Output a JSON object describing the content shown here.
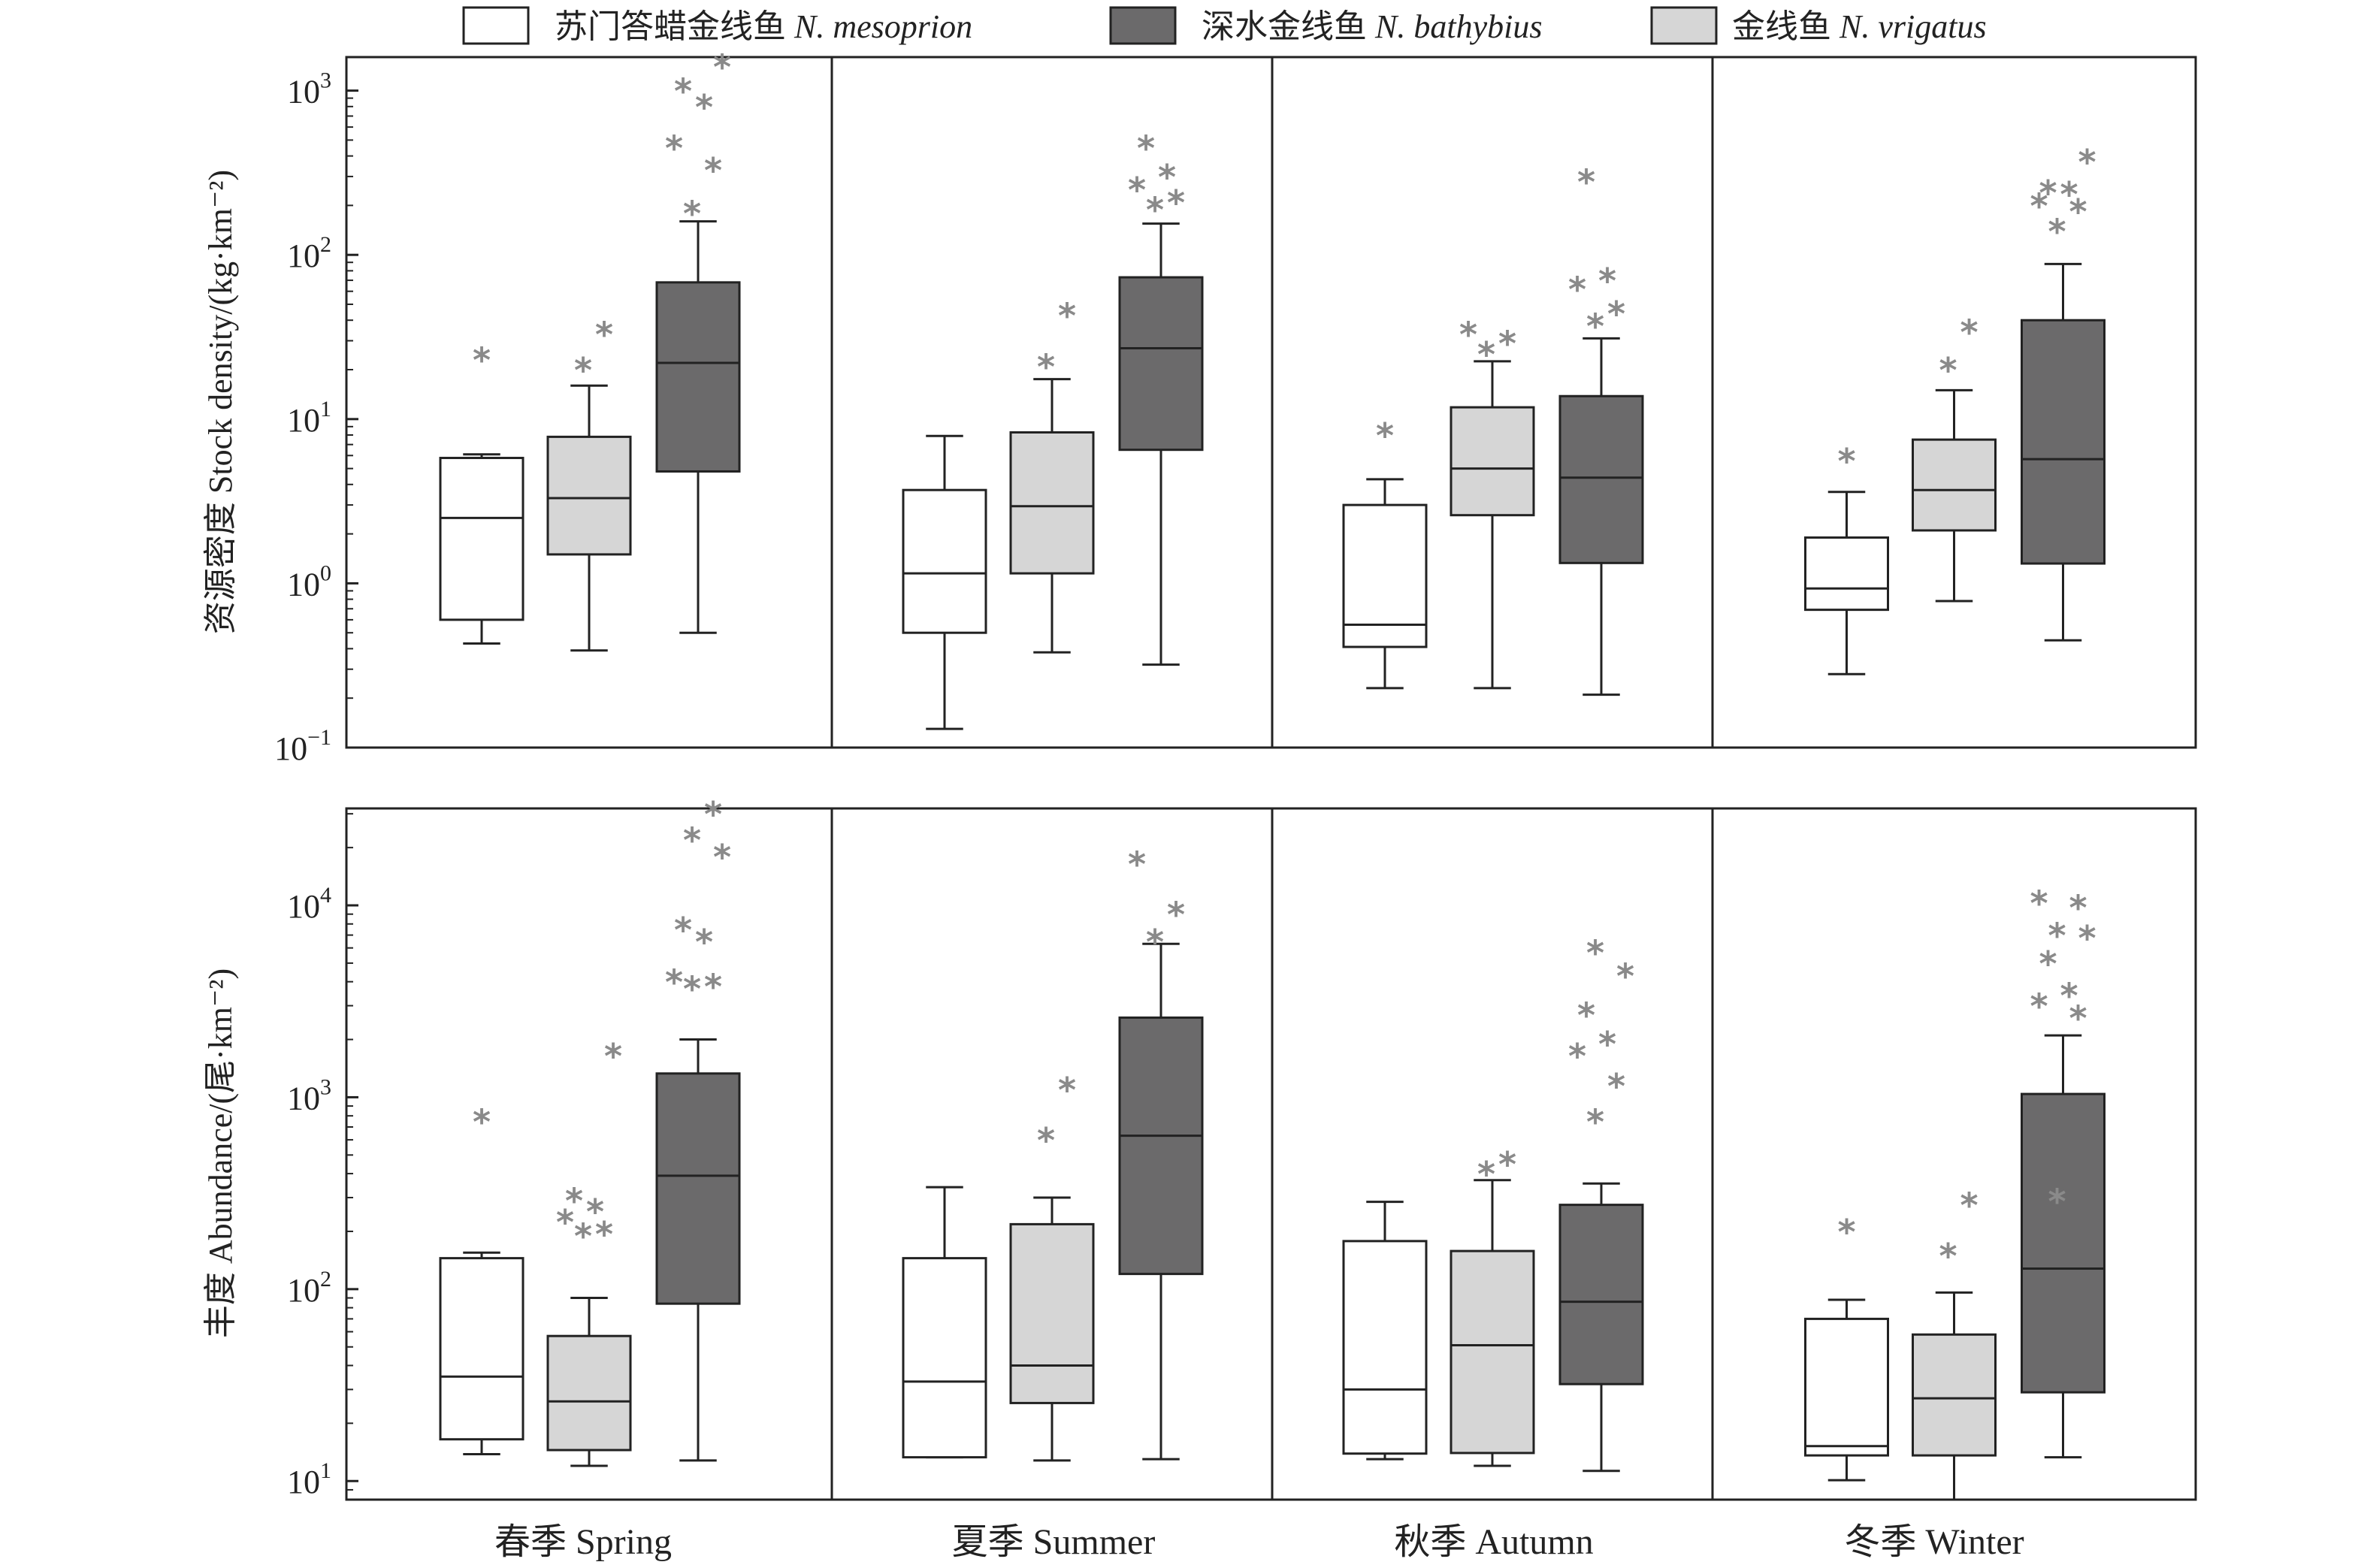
{
  "legend": {
    "items": [
      {
        "label_cn": "苏门答蜡金线鱼",
        "label_sci": "N. mesoprion",
        "color": "#ffffff"
      },
      {
        "label_cn": "深水金线鱼",
        "label_sci": "N. bathybius",
        "color": "#6b6a6b"
      },
      {
        "label_cn": "金线鱼",
        "label_sci": "N. vrigatus",
        "color": "#d6d6d6"
      }
    ]
  },
  "colors": {
    "outlier": "#8a8a8a",
    "axis": "#222222"
  },
  "chart_data": [
    {
      "type": "boxplot",
      "scale": "log10",
      "ylabel": "资源密度 Stock density/(kg·km⁻²)",
      "ylim": [
        0.1,
        1600
      ],
      "yticks": [
        {
          "value": 0.1,
          "base": "10",
          "exp": "−1"
        },
        {
          "value": 1,
          "base": "10",
          "exp": "0"
        },
        {
          "value": 10,
          "base": "10",
          "exp": "1"
        },
        {
          "value": 100,
          "base": "10",
          "exp": "2"
        },
        {
          "value": 1000,
          "base": "10",
          "exp": "3"
        }
      ],
      "categories": [
        "春季 Spring",
        "夏季 Summer",
        "秋季 Autumn",
        "冬季 Winter"
      ],
      "series": [
        {
          "name": "N. mesoprion",
          "color": "#ffffff",
          "boxes": [
            {
              "whisker_low": 0.43,
              "q1": 0.6,
              "median": 2.5,
              "q3": 5.8,
              "whisker_high": 6.1,
              "outliers": [
                23
              ]
            },
            {
              "whisker_low": 0.13,
              "q1": 0.5,
              "median": 1.15,
              "q3": 3.7,
              "whisker_high": 7.9,
              "outliers": []
            },
            {
              "whisker_low": 0.23,
              "q1": 0.41,
              "median": 0.56,
              "q3": 3.0,
              "whisker_high": 4.3,
              "outliers": [
                8
              ]
            },
            {
              "whisker_low": 0.28,
              "q1": 0.69,
              "median": 0.93,
              "q3": 1.9,
              "whisker_high": 3.6,
              "outliers": [
                5.6
              ]
            }
          ]
        },
        {
          "name": "N. vrigatus",
          "color": "#d6d6d6",
          "boxes": [
            {
              "whisker_low": 0.39,
              "q1": 1.5,
              "median": 3.3,
              "q3": 7.8,
              "whisker_high": 16,
              "outliers": [
                20,
                33
              ]
            },
            {
              "whisker_low": 0.38,
              "q1": 1.15,
              "median": 2.95,
              "q3": 8.3,
              "whisker_high": 17.5,
              "outliers": [
                21,
                43
              ]
            },
            {
              "whisker_low": 0.23,
              "q1": 2.6,
              "median": 5.0,
              "q3": 11.8,
              "whisker_high": 22.5,
              "outliers": [
                25,
                29,
                33
              ]
            },
            {
              "whisker_low": 0.78,
              "q1": 2.1,
              "median": 3.7,
              "q3": 7.5,
              "whisker_high": 15,
              "outliers": [
                20,
                34
              ]
            }
          ]
        },
        {
          "name": "N. bathybius",
          "color": "#6b6a6b",
          "boxes": [
            {
              "whisker_low": 0.5,
              "q1": 4.8,
              "median": 22,
              "q3": 68,
              "whisker_high": 160,
              "outliers": [
                180,
                330,
                450,
                800,
                1000,
                1400
              ]
            },
            {
              "whisker_low": 0.32,
              "q1": 6.5,
              "median": 27,
              "q3": 73,
              "whisker_high": 155,
              "outliers": [
                190,
                210,
                250,
                300,
                450
              ]
            },
            {
              "whisker_low": 0.21,
              "q1": 1.33,
              "median": 4.4,
              "q3": 13.8,
              "whisker_high": 31,
              "outliers": [
                37,
                44,
                62,
                70,
                280
              ]
            },
            {
              "whisker_low": 0.45,
              "q1": 1.32,
              "median": 5.7,
              "q3": 40,
              "whisker_high": 88,
              "outliers": [
                140,
                185,
                200,
                235,
                240,
                370
              ]
            }
          ]
        }
      ]
    },
    {
      "type": "boxplot",
      "scale": "log10",
      "ylabel": "丰度 Abundance/(尾·km⁻²)",
      "ylim": [
        8,
        32000
      ],
      "yticks": [
        {
          "value": 10,
          "base": "10",
          "exp": "1"
        },
        {
          "value": 100,
          "base": "10",
          "exp": "2"
        },
        {
          "value": 1000,
          "base": "10",
          "exp": "3"
        },
        {
          "value": 10000,
          "base": "10",
          "exp": "4"
        }
      ],
      "categories": [
        "春季 Spring",
        "夏季 Summer",
        "秋季 Autumn",
        "冬季 Winter"
      ],
      "series": [
        {
          "name": "N. mesoprion",
          "color": "#ffffff",
          "boxes": [
            {
              "whisker_low": 13.8,
              "q1": 16.5,
              "median": 35,
              "q3": 145,
              "whisker_high": 155,
              "outliers": [
                750
              ]
            },
            {
              "whisker_low": 13.3,
              "q1": 13.3,
              "median": 33,
              "q3": 145,
              "whisker_high": 340,
              "outliers": []
            },
            {
              "whisker_low": 13,
              "q1": 13.9,
              "median": 30,
              "q3": 178,
              "whisker_high": 285,
              "outliers": []
            },
            {
              "whisker_low": 10.1,
              "q1": 13.6,
              "median": 15.2,
              "q3": 70,
              "whisker_high": 88,
              "outliers": [
                200
              ]
            }
          ]
        },
        {
          "name": "N. vrigatus",
          "color": "#d6d6d6",
          "boxes": [
            {
              "whisker_low": 12,
              "q1": 14.5,
              "median": 26,
              "q3": 57,
              "whisker_high": 90,
              "outliers": [
                190,
                195,
                225,
                255,
                290,
                1650
              ]
            },
            {
              "whisker_low": 12.8,
              "q1": 25.5,
              "median": 40,
              "q3": 218,
              "whisker_high": 300,
              "outliers": [
                600,
                1100
              ]
            },
            {
              "whisker_low": 12,
              "q1": 14,
              "median": 51,
              "q3": 158,
              "whisker_high": 370,
              "outliers": [
                400,
                450
              ]
            },
            {
              "whisker_low": 8,
              "q1": 13.6,
              "median": 27,
              "q3": 58,
              "whisker_high": 96,
              "outliers": [
                150,
                275
              ]
            }
          ]
        },
        {
          "name": "N. bathybius",
          "color": "#6b6a6b",
          "boxes": [
            {
              "whisker_low": 12.8,
              "q1": 84,
              "median": 390,
              "q3": 1330,
              "whisker_high": 2000,
              "outliers": [
                3700,
                3800,
                4000,
                6500,
                7500,
                18000,
                22000,
                30000
              ]
            },
            {
              "whisker_low": 13,
              "q1": 120,
              "median": 630,
              "q3": 2600,
              "whisker_high": 6300,
              "outliers": [
                6500,
                9000,
                16500
              ]
            },
            {
              "whisker_low": 11.3,
              "q1": 32,
              "median": 86,
              "q3": 275,
              "whisker_high": 355,
              "outliers": [
                750,
                1150,
                1650,
                1900,
                2700,
                4300,
                5700
              ]
            },
            {
              "whisker_low": 13.3,
              "q1": 29,
              "median": 128,
              "q3": 1040,
              "whisker_high": 2100,
              "outliers": [
                288,
                2600,
                3000,
                3400,
                5000,
                6800,
                7000,
                9800,
                10300
              ]
            }
          ]
        }
      ]
    }
  ]
}
